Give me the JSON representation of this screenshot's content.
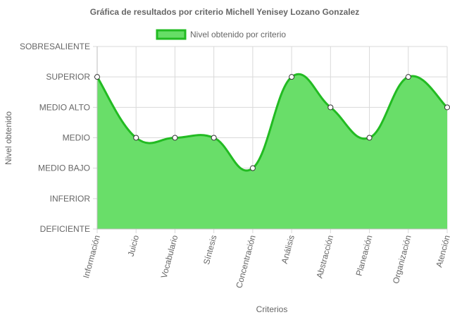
{
  "chart_data": {
    "type": "area",
    "title": "Gráfica de resultados por criterio Michell Yenisey Lozano Gonzalez",
    "xlabel": "Criterios",
    "ylabel": "Nivel obtenido",
    "y_categories": [
      "DEFICIENTE",
      "INFERIOR",
      "MEDIO BAJO",
      "MEDIO",
      "MEDIO ALTO",
      "SUPERIOR",
      "SOBRESALIENTE"
    ],
    "ylim": [
      0,
      6
    ],
    "categories": [
      "Información",
      "Juicio",
      "Vocabulario",
      "Síntesis",
      "Concentración",
      "Análisis",
      "Abstracción",
      "Planeación",
      "Organización",
      "Atención"
    ],
    "series": [
      {
        "name": "Nivel obtenido por criterio",
        "values": [
          5,
          3,
          3,
          3,
          2,
          5,
          4,
          3,
          5,
          4
        ],
        "fill_color": "#66dd66",
        "line_color": "#22bb22"
      }
    ],
    "grid": true,
    "legend_position": "top"
  }
}
